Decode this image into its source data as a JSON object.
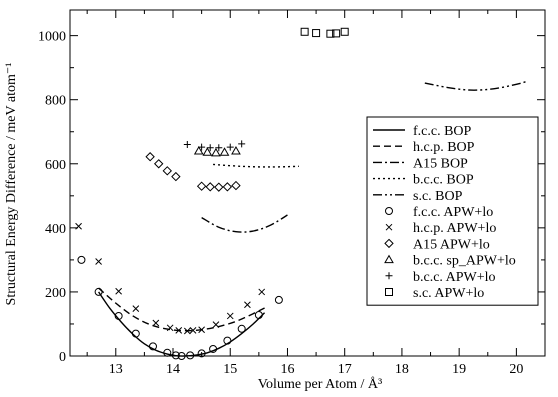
{
  "chart_data": {
    "type": "scatter",
    "xlabel": "Volume per Atom / Å³",
    "ylabel": "Structural Energy Difference / meV atom⁻¹",
    "xlim": [
      12.2,
      20.5
    ],
    "ylim": [
      0,
      1080
    ],
    "xticks": [
      13,
      14,
      15,
      16,
      17,
      18,
      19,
      20
    ],
    "yticks": [
      0,
      200,
      400,
      600,
      800,
      1000
    ],
    "grid": false,
    "legend_position": "right-middle",
    "series": [
      {
        "name": "f.c.c. BOP",
        "kind": "line",
        "dash": "",
        "x": [
          12.7,
          12.9,
          13.1,
          13.3,
          13.5,
          13.7,
          13.9,
          14.05,
          14.2,
          14.4,
          14.6,
          14.8,
          15.0,
          15.2,
          15.4,
          15.6
        ],
        "y": [
          200,
          148,
          105,
          68,
          38,
          18,
          6,
          1,
          0,
          3,
          10,
          24,
          44,
          70,
          100,
          135
        ]
      },
      {
        "name": "h.c.p. BOP",
        "kind": "line",
        "dash": "7,4",
        "x": [
          12.7,
          13.0,
          13.3,
          13.6,
          13.9,
          14.2,
          14.5,
          14.8,
          15.1,
          15.4,
          15.6
        ],
        "y": [
          212,
          165,
          125,
          98,
          84,
          79,
          82,
          92,
          108,
          132,
          150
        ]
      },
      {
        "name": "A15 BOP",
        "kind": "line",
        "dash": "9,3,2,3",
        "x": [
          14.5,
          14.8,
          15.1,
          15.4,
          15.7,
          16.0
        ],
        "y": [
          432,
          402,
          388,
          390,
          408,
          440
        ]
      },
      {
        "name": "b.c.c. BOP",
        "kind": "line",
        "dash": "2,3",
        "x": [
          14.7,
          15.2,
          15.7,
          16.2
        ],
        "y": [
          598,
          592,
          590,
          592
        ]
      },
      {
        "name": "s.c. BOP",
        "kind": "line",
        "dash": "9,3,2,3,2,3",
        "x": [
          18.4,
          18.8,
          19.2,
          19.6,
          20.0,
          20.2
        ],
        "y": [
          852,
          838,
          830,
          834,
          848,
          858
        ]
      },
      {
        "name": "f.c.c. APW+lo",
        "kind": "points",
        "marker": "circle",
        "x": [
          12.4,
          12.7,
          13.05,
          13.35,
          13.65,
          13.9,
          14.05,
          14.15,
          14.3,
          14.5,
          14.7,
          14.95,
          15.2,
          15.5,
          15.85
        ],
        "y": [
          300,
          200,
          125,
          70,
          30,
          10,
          2,
          0,
          2,
          8,
          22,
          48,
          85,
          128,
          175
        ]
      },
      {
        "name": "h.c.p. APW+lo",
        "kind": "points",
        "marker": "cross",
        "x": [
          12.35,
          12.7,
          13.05,
          13.35,
          13.7,
          13.95,
          14.1,
          14.25,
          14.35,
          14.5,
          14.75,
          15.0,
          15.3,
          15.55
        ],
        "y": [
          405,
          295,
          202,
          148,
          103,
          88,
          80,
          78,
          80,
          82,
          98,
          125,
          160,
          200
        ]
      },
      {
        "name": "A15 APW+lo",
        "kind": "points",
        "marker": "diamond",
        "x": [
          13.6,
          13.75,
          13.9,
          14.05,
          14.5,
          14.65,
          14.8,
          14.95,
          15.1
        ],
        "y": [
          622,
          600,
          578,
          560,
          530,
          528,
          527,
          528,
          532
        ]
      },
      {
        "name": "b.c.c. sp_APW+lo",
        "kind": "points",
        "marker": "triangle",
        "x": [
          14.45,
          14.6,
          14.75,
          14.9,
          15.1
        ],
        "y": [
          640,
          636,
          634,
          636,
          640
        ]
      },
      {
        "name": "b.c.c. APW+lo",
        "kind": "points",
        "marker": "plus",
        "x": [
          14.25,
          14.5,
          14.65,
          14.8,
          15.0,
          15.2
        ],
        "y": [
          660,
          652,
          650,
          650,
          652,
          662
        ]
      },
      {
        "name": "s.c. APW+lo",
        "kind": "points",
        "marker": "square",
        "x": [
          16.3,
          16.5,
          16.75,
          16.85,
          17.0
        ],
        "y": [
          1012,
          1008,
          1006,
          1007,
          1012
        ]
      }
    ]
  }
}
